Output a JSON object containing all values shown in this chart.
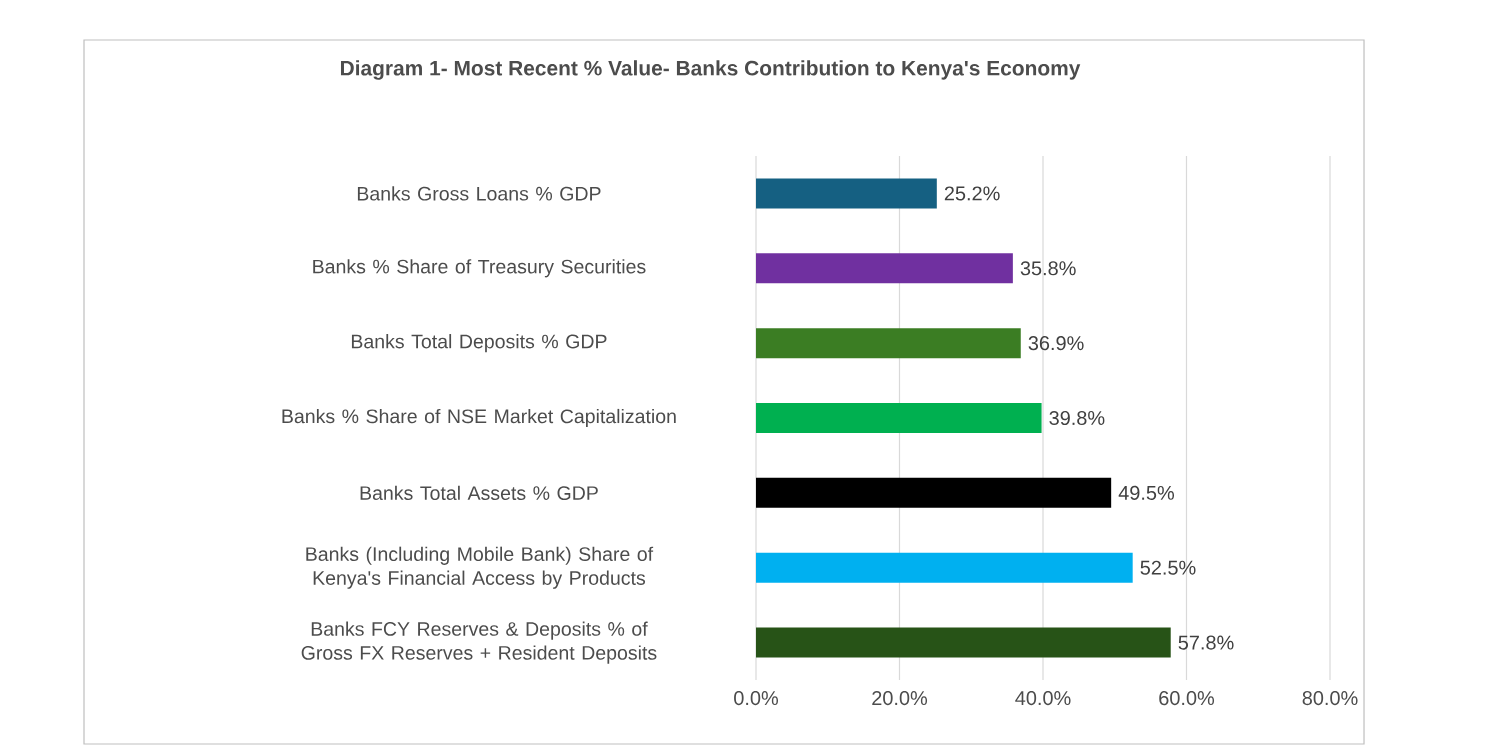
{
  "chart_data": {
    "type": "bar",
    "orientation": "horizontal",
    "title": "Diagram 1- Most Recent % Value- Banks Contribution to Kenya's Economy",
    "categories": [
      "Banks Gross Loans % GDP",
      "Banks % Share of Treasury Securities",
      "Banks Total Deposits % GDP",
      "Banks % Share of NSE Market Capitalization",
      "Banks Total Assets % GDP",
      "Banks (Including Mobile Bank) Share of Kenya's Financial Access by Products",
      "Banks FCY Reserves & Deposits  % of Gross FX Reserves + Resident Deposits"
    ],
    "values": [
      25.2,
      35.8,
      36.9,
      39.8,
      49.5,
      52.5,
      57.8
    ],
    "value_labels": [
      "25.2%",
      "35.8%",
      "36.9%",
      "39.8%",
      "49.5%",
      "52.5%",
      "57.8%"
    ],
    "colors": [
      "#156082",
      "#7030a0",
      "#3b7d23",
      "#00b050",
      "#000000",
      "#00b0f0",
      "#275317"
    ],
    "xlim": [
      0,
      80
    ],
    "xticks": [
      {
        "value": 0,
        "label": "0.0%"
      },
      {
        "value": 20,
        "label": "20.0%"
      },
      {
        "value": 40,
        "label": "40.0%"
      },
      {
        "value": 60,
        "label": "60.0%"
      },
      {
        "value": 80,
        "label": "80.0%"
      }
    ],
    "grid": "x"
  }
}
